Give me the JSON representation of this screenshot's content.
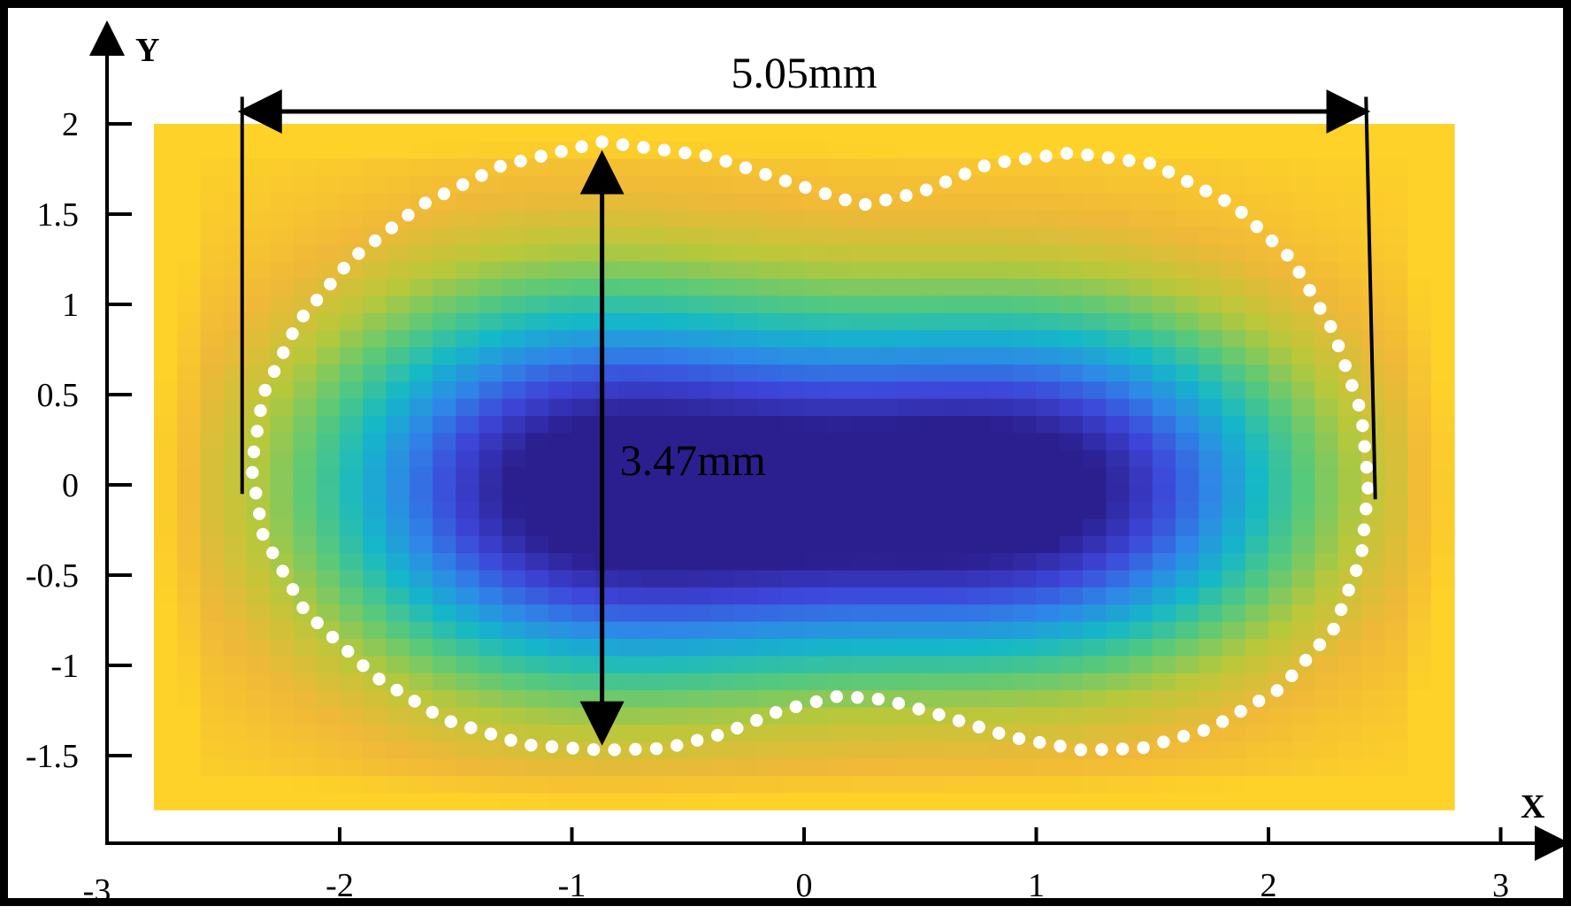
{
  "chart_data": {
    "type": "heatmap",
    "x_axis": {
      "label": "X",
      "range": [
        -3,
        3
      ],
      "ticks": [
        "-3",
        "-2",
        "-1",
        "0",
        "1",
        "2",
        "3"
      ]
    },
    "y_axis": {
      "label": "Y",
      "range": [
        -1.8,
        2
      ],
      "ticks": [
        "2",
        "1.5",
        "1",
        "0.5",
        "0",
        "-0.5",
        "-1",
        "-1.5"
      ]
    },
    "data_extent": {
      "x": [
        -2.8,
        2.8
      ],
      "y": [
        -1.8,
        2.0
      ]
    },
    "colormap": [
      "#2b1f8f",
      "#3d45d8",
      "#2f86e8",
      "#14b8c8",
      "#58c97a",
      "#b8c83a",
      "#f0b838",
      "#fed228"
    ],
    "minima": [
      {
        "x": -1.0,
        "y": 0.0
      },
      {
        "x": 1.1,
        "y": 0.0
      }
    ],
    "boundary": {
      "style": "white dotted",
      "points": [
        [
          -0.87,
          1.9
        ],
        [
          -0.4,
          1.82
        ],
        [
          0.0,
          1.65
        ],
        [
          0.25,
          1.55
        ],
        [
          0.5,
          1.62
        ],
        [
          0.8,
          1.78
        ],
        [
          1.15,
          1.84
        ],
        [
          1.5,
          1.78
        ],
        [
          1.85,
          1.55
        ],
        [
          2.1,
          1.25
        ],
        [
          2.28,
          0.85
        ],
        [
          2.4,
          0.4
        ],
        [
          2.43,
          0.0
        ],
        [
          2.4,
          -0.4
        ],
        [
          2.28,
          -0.8
        ],
        [
          2.05,
          -1.13
        ],
        [
          1.75,
          -1.35
        ],
        [
          1.45,
          -1.46
        ],
        [
          1.2,
          -1.47
        ],
        [
          0.9,
          -1.4
        ],
        [
          0.6,
          -1.28
        ],
        [
          0.35,
          -1.19
        ],
        [
          0.15,
          -1.17
        ],
        [
          -0.1,
          -1.25
        ],
        [
          -0.35,
          -1.38
        ],
        [
          -0.6,
          -1.46
        ],
        [
          -0.87,
          -1.47
        ],
        [
          -1.2,
          -1.44
        ],
        [
          -1.55,
          -1.3
        ],
        [
          -1.85,
          -1.06
        ],
        [
          -2.15,
          -0.7
        ],
        [
          -2.33,
          -0.28
        ],
        [
          -2.38,
          0.1
        ],
        [
          -2.33,
          0.5
        ],
        [
          -2.18,
          0.9
        ],
        [
          -1.95,
          1.25
        ],
        [
          -1.65,
          1.55
        ],
        [
          -1.3,
          1.77
        ]
      ]
    },
    "annotations": [
      {
        "id": "width",
        "text": "5.05mm",
        "from": [
          -2.42,
          2.0
        ],
        "to": [
          2.42,
          2.0
        ],
        "arrow": "double"
      },
      {
        "id": "height",
        "text": "3.47mm",
        "from": [
          -0.87,
          1.83
        ],
        "to": [
          -0.87,
          -1.42
        ],
        "arrow": "double"
      }
    ],
    "reference_lines": [
      {
        "from": [
          -2.42,
          2.15
        ],
        "to": [
          -2.42,
          -0.05
        ]
      },
      {
        "from": [
          2.42,
          2.15
        ],
        "to": [
          2.46,
          -0.08
        ]
      }
    ]
  }
}
